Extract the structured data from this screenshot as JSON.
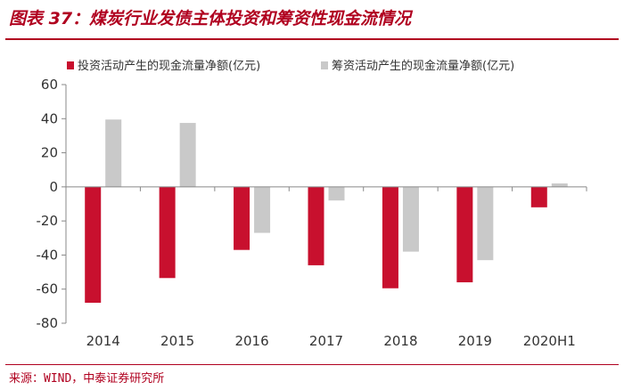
{
  "header": {
    "title": "图表 37：煤炭行业发债主体投资和筹资性现金流情况"
  },
  "footer": {
    "source": "来源：WIND，中泰证券研究所"
  },
  "chart_data": {
    "type": "bar",
    "categories": [
      "2014",
      "2015",
      "2016",
      "2017",
      "2018",
      "2019",
      "2020H1"
    ],
    "series": [
      {
        "name": "投资活动产生的现金流量净额(亿元)",
        "color": "#c8102e",
        "values": [
          -68,
          -53.5,
          -37,
          -46,
          -59.5,
          -56,
          -12
        ]
      },
      {
        "name": "筹资活动产生的现金流量净额(亿元)",
        "color": "#c9c9c9",
        "values": [
          39.5,
          37.5,
          -27,
          -8,
          -38,
          -43,
          2
        ]
      }
    ],
    "ylim": [
      -80,
      60
    ],
    "yticks": [
      60,
      40,
      20,
      0,
      -20,
      -40,
      -60,
      -80
    ],
    "legend_position": "top"
  }
}
